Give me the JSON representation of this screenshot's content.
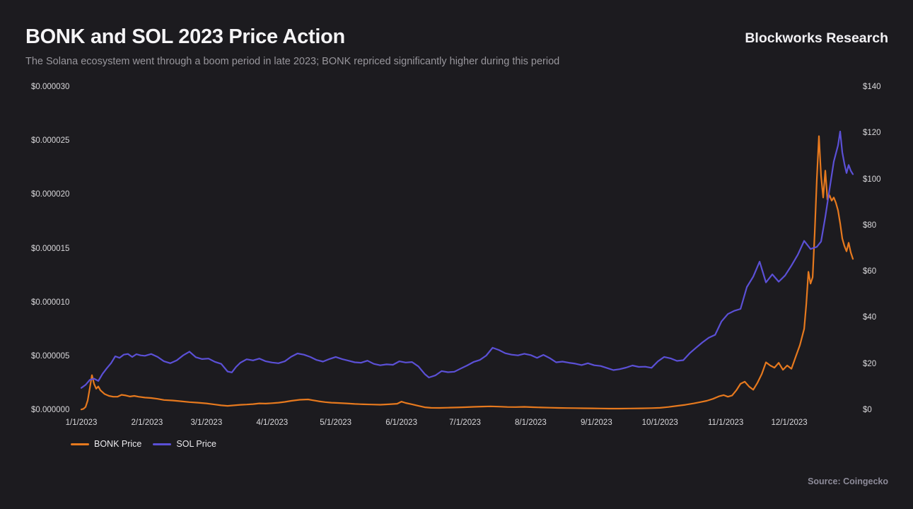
{
  "header": {
    "title": "BONK and SOL 2023 Price Action",
    "subtitle": "The Solana ecosystem went through a boom period in late 2023; BONK repriced significantly higher during this period",
    "brand": "Blockworks Research"
  },
  "footer": {
    "source": "Source: Coingecko"
  },
  "colors": {
    "background": "#1c1b1f",
    "bonk_orange": "#e6791e",
    "sol_purple": "#5b50d6",
    "tick_text": "#d8d7da",
    "subtitle_text": "#98969c"
  },
  "legend": {
    "items": [
      {
        "label": "BONK Price",
        "color": "#e6791e"
      },
      {
        "label": "SOL Price",
        "color": "#5b50d6"
      }
    ]
  },
  "chart_data": {
    "type": "line",
    "title": "BONK and SOL 2023 Price Action",
    "grid": false,
    "legend_position": "bottom-left",
    "x_axis": {
      "kind": "date",
      "range_days": [
        1,
        365
      ],
      "tick_labels": [
        "1/1/2023",
        "2/1/2023",
        "3/1/2023",
        "4/1/2023",
        "5/1/2023",
        "6/1/2023",
        "7/1/2023",
        "8/1/2023",
        "9/1/2023",
        "10/1/2023",
        "11/1/2023",
        "12/1/2023"
      ],
      "tick_days": [
        1,
        32,
        60,
        91,
        121,
        152,
        182,
        213,
        244,
        274,
        305,
        335
      ]
    },
    "y_left": {
      "series": "BONK Price",
      "unit": "USD (labels in millionths of a dollar)",
      "range": [
        0,
        30
      ],
      "tick_values": [
        0,
        5,
        10,
        15,
        20,
        25,
        30
      ],
      "tick_labels": [
        "$0.000000",
        "$0.000005",
        "$0.000010",
        "$0.000015",
        "$0.000020",
        "$0.000025",
        "$0.000030"
      ]
    },
    "y_right": {
      "series": "SOL Price",
      "unit": "USD",
      "range": [
        0,
        140
      ],
      "tick_values": [
        0,
        20,
        40,
        60,
        80,
        100,
        120,
        140
      ],
      "tick_labels": [
        "$0",
        "$20",
        "$40",
        "$60",
        "$80",
        "$100",
        "$120",
        "$140"
      ]
    },
    "series": [
      {
        "name": "BONK Price",
        "axis": "left",
        "color": "#e6791e",
        "values_unit": "price in millionths of USD (value 1 = $0.000001)",
        "points": [
          [
            1,
            0.12
          ],
          [
            2,
            0.18
          ],
          [
            3,
            0.35
          ],
          [
            4,
            0.95
          ],
          [
            5,
            2.1
          ],
          [
            6,
            3.3
          ],
          [
            7,
            2.5
          ],
          [
            8,
            2.05
          ],
          [
            9,
            2.25
          ],
          [
            10,
            1.9
          ],
          [
            12,
            1.55
          ],
          [
            14,
            1.38
          ],
          [
            16,
            1.3
          ],
          [
            18,
            1.3
          ],
          [
            20,
            1.48
          ],
          [
            22,
            1.42
          ],
          [
            24,
            1.32
          ],
          [
            26,
            1.38
          ],
          [
            28,
            1.3
          ],
          [
            31,
            1.22
          ],
          [
            34,
            1.18
          ],
          [
            37,
            1.1
          ],
          [
            40,
            1.0
          ],
          [
            44,
            0.95
          ],
          [
            48,
            0.88
          ],
          [
            52,
            0.8
          ],
          [
            56,
            0.75
          ],
          [
            60,
            0.68
          ],
          [
            64,
            0.58
          ],
          [
            67,
            0.5
          ],
          [
            70,
            0.45
          ],
          [
            73,
            0.5
          ],
          [
            76,
            0.55
          ],
          [
            79,
            0.58
          ],
          [
            82,
            0.62
          ],
          [
            85,
            0.68
          ],
          [
            88,
            0.66
          ],
          [
            91,
            0.7
          ],
          [
            94,
            0.75
          ],
          [
            97,
            0.82
          ],
          [
            100,
            0.92
          ],
          [
            104,
            1.02
          ],
          [
            108,
            1.05
          ],
          [
            110,
            0.98
          ],
          [
            113,
            0.88
          ],
          [
            116,
            0.8
          ],
          [
            119,
            0.75
          ],
          [
            122,
            0.72
          ],
          [
            126,
            0.68
          ],
          [
            130,
            0.63
          ],
          [
            134,
            0.6
          ],
          [
            138,
            0.58
          ],
          [
            142,
            0.56
          ],
          [
            146,
            0.6
          ],
          [
            150,
            0.65
          ],
          [
            152,
            0.85
          ],
          [
            154,
            0.72
          ],
          [
            157,
            0.6
          ],
          [
            160,
            0.45
          ],
          [
            163,
            0.32
          ],
          [
            166,
            0.27
          ],
          [
            170,
            0.26
          ],
          [
            174,
            0.28
          ],
          [
            178,
            0.3
          ],
          [
            182,
            0.33
          ],
          [
            186,
            0.36
          ],
          [
            190,
            0.39
          ],
          [
            194,
            0.41
          ],
          [
            198,
            0.38
          ],
          [
            202,
            0.35
          ],
          [
            206,
            0.34
          ],
          [
            210,
            0.36
          ],
          [
            214,
            0.33
          ],
          [
            218,
            0.3
          ],
          [
            222,
            0.28
          ],
          [
            226,
            0.26
          ],
          [
            230,
            0.25
          ],
          [
            234,
            0.24
          ],
          [
            238,
            0.23
          ],
          [
            242,
            0.22
          ],
          [
            246,
            0.21
          ],
          [
            250,
            0.2
          ],
          [
            255,
            0.2
          ],
          [
            260,
            0.21
          ],
          [
            265,
            0.22
          ],
          [
            270,
            0.24
          ],
          [
            274,
            0.27
          ],
          [
            278,
            0.35
          ],
          [
            282,
            0.45
          ],
          [
            286,
            0.55
          ],
          [
            290,
            0.68
          ],
          [
            293,
            0.8
          ],
          [
            296,
            0.92
          ],
          [
            299,
            1.1
          ],
          [
            302,
            1.35
          ],
          [
            304,
            1.45
          ],
          [
            306,
            1.3
          ],
          [
            308,
            1.42
          ],
          [
            310,
            1.9
          ],
          [
            312,
            2.5
          ],
          [
            314,
            2.7
          ],
          [
            316,
            2.25
          ],
          [
            318,
            1.95
          ],
          [
            320,
            2.6
          ],
          [
            322,
            3.4
          ],
          [
            324,
            4.5
          ],
          [
            326,
            4.2
          ],
          [
            328,
            4.0
          ],
          [
            330,
            4.45
          ],
          [
            332,
            3.8
          ],
          [
            334,
            4.2
          ],
          [
            336,
            3.9
          ],
          [
            338,
            5.0
          ],
          [
            340,
            6.1
          ],
          [
            342,
            7.6
          ],
          [
            343,
            9.9
          ],
          [
            344,
            12.9
          ],
          [
            345,
            11.8
          ],
          [
            346,
            12.4
          ],
          [
            347,
            16.5
          ],
          [
            348,
            21.5
          ],
          [
            349,
            25.5
          ],
          [
            350,
            21.8
          ],
          [
            351,
            19.8
          ],
          [
            352,
            22.3
          ],
          [
            353,
            19.6
          ],
          [
            354,
            20.0
          ],
          [
            355,
            19.5
          ],
          [
            356,
            19.8
          ],
          [
            357,
            19.3
          ],
          [
            358,
            18.6
          ],
          [
            359,
            17.4
          ],
          [
            360,
            16.0
          ],
          [
            361,
            15.3
          ],
          [
            362,
            14.8
          ],
          [
            363,
            15.6
          ],
          [
            364,
            14.7
          ],
          [
            365,
            14.1
          ]
        ]
      },
      {
        "name": "SOL Price",
        "axis": "right",
        "color": "#5b50d6",
        "values_unit": "USD",
        "points": [
          [
            1,
            9.9
          ],
          [
            3,
            11.2
          ],
          [
            5,
            13.4
          ],
          [
            7,
            13.9
          ],
          [
            9,
            12.9
          ],
          [
            11,
            16.0
          ],
          [
            13,
            18.4
          ],
          [
            15,
            20.6
          ],
          [
            17,
            23.6
          ],
          [
            19,
            22.9
          ],
          [
            21,
            24.3
          ],
          [
            23,
            24.6
          ],
          [
            25,
            23.3
          ],
          [
            27,
            24.5
          ],
          [
            29,
            24.0
          ],
          [
            31,
            23.8
          ],
          [
            34,
            24.6
          ],
          [
            37,
            23.3
          ],
          [
            40,
            21.4
          ],
          [
            43,
            20.6
          ],
          [
            46,
            21.8
          ],
          [
            49,
            24.0
          ],
          [
            52,
            25.6
          ],
          [
            55,
            23.2
          ],
          [
            58,
            22.4
          ],
          [
            61,
            22.6
          ],
          [
            64,
            21.2
          ],
          [
            67,
            20.3
          ],
          [
            70,
            17.0
          ],
          [
            72,
            16.6
          ],
          [
            74,
            19.0
          ],
          [
            76,
            20.8
          ],
          [
            79,
            22.3
          ],
          [
            82,
            21.8
          ],
          [
            85,
            22.6
          ],
          [
            88,
            21.4
          ],
          [
            91,
            20.9
          ],
          [
            94,
            20.6
          ],
          [
            97,
            21.4
          ],
          [
            100,
            23.4
          ],
          [
            103,
            24.8
          ],
          [
            106,
            24.3
          ],
          [
            109,
            23.3
          ],
          [
            112,
            22.0
          ],
          [
            115,
            21.3
          ],
          [
            118,
            22.4
          ],
          [
            121,
            23.3
          ],
          [
            124,
            22.4
          ],
          [
            127,
            21.7
          ],
          [
            130,
            21.0
          ],
          [
            133,
            20.8
          ],
          [
            136,
            21.7
          ],
          [
            139,
            20.3
          ],
          [
            142,
            19.7
          ],
          [
            145,
            20.1
          ],
          [
            148,
            19.9
          ],
          [
            151,
            21.4
          ],
          [
            154,
            20.9
          ],
          [
            157,
            21.1
          ],
          [
            160,
            19.2
          ],
          [
            163,
            15.9
          ],
          [
            165,
            14.4
          ],
          [
            168,
            15.3
          ],
          [
            171,
            17.2
          ],
          [
            174,
            16.7
          ],
          [
            177,
            16.9
          ],
          [
            180,
            18.3
          ],
          [
            183,
            19.6
          ],
          [
            186,
            21.1
          ],
          [
            189,
            22.0
          ],
          [
            192,
            23.9
          ],
          [
            195,
            27.3
          ],
          [
            198,
            26.3
          ],
          [
            201,
            24.9
          ],
          [
            204,
            24.3
          ],
          [
            207,
            24.0
          ],
          [
            210,
            24.7
          ],
          [
            213,
            24.1
          ],
          [
            216,
            22.9
          ],
          [
            219,
            24.2
          ],
          [
            222,
            22.8
          ],
          [
            225,
            21.0
          ],
          [
            228,
            21.3
          ],
          [
            231,
            20.8
          ],
          [
            234,
            20.4
          ],
          [
            237,
            19.8
          ],
          [
            240,
            20.6
          ],
          [
            243,
            19.7
          ],
          [
            246,
            19.4
          ],
          [
            249,
            18.5
          ],
          [
            252,
            17.6
          ],
          [
            255,
            18.0
          ],
          [
            258,
            18.7
          ],
          [
            261,
            19.6
          ],
          [
            264,
            19.0
          ],
          [
            267,
            19.1
          ],
          [
            270,
            18.6
          ],
          [
            273,
            21.4
          ],
          [
            276,
            23.3
          ],
          [
            279,
            22.7
          ],
          [
            282,
            21.6
          ],
          [
            285,
            21.9
          ],
          [
            288,
            24.9
          ],
          [
            291,
            27.3
          ],
          [
            294,
            29.6
          ],
          [
            297,
            31.6
          ],
          [
            300,
            32.9
          ],
          [
            303,
            38.7
          ],
          [
            306,
            41.9
          ],
          [
            309,
            43.3
          ],
          [
            312,
            44.1
          ],
          [
            315,
            53.6
          ],
          [
            318,
            58.1
          ],
          [
            321,
            64.6
          ],
          [
            324,
            55.6
          ],
          [
            327,
            59.1
          ],
          [
            330,
            55.9
          ],
          [
            333,
            58.6
          ],
          [
            336,
            62.9
          ],
          [
            339,
            67.6
          ],
          [
            342,
            73.6
          ],
          [
            345,
            70.1
          ],
          [
            348,
            71.0
          ],
          [
            350,
            73.3
          ],
          [
            352,
            84.0
          ],
          [
            354,
            96.0
          ],
          [
            356,
            108.0
          ],
          [
            358,
            115.0
          ],
          [
            359,
            121.0
          ],
          [
            360,
            112.0
          ],
          [
            361,
            107.0
          ],
          [
            362,
            103.0
          ],
          [
            363,
            106.5
          ],
          [
            364,
            104.0
          ],
          [
            365,
            102.5
          ]
        ]
      }
    ]
  }
}
